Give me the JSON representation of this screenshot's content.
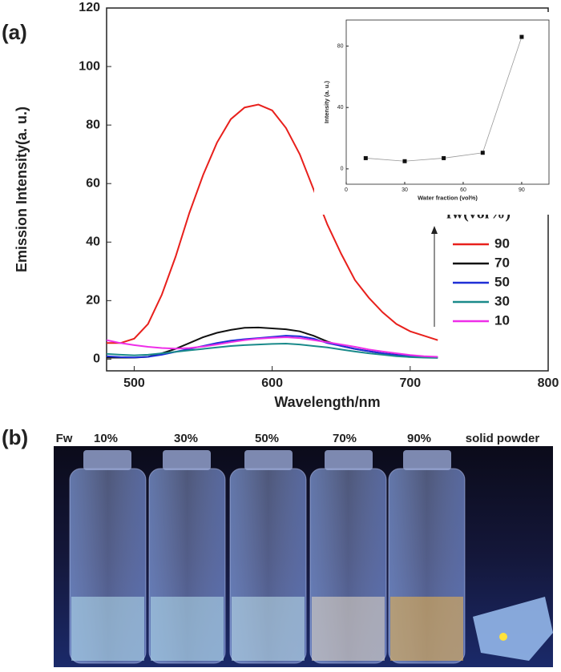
{
  "panels": [
    "(a)",
    "(b)"
  ],
  "chart_data": [
    {
      "type": "line",
      "xlabel": "Wavelength/nm",
      "ylabel": "Emission Intensity(a. u.)",
      "x": [
        480,
        490,
        500,
        510,
        520,
        530,
        540,
        550,
        560,
        570,
        580,
        590,
        600,
        610,
        620,
        630,
        640,
        650,
        660,
        670,
        680,
        690,
        700,
        710,
        720
      ],
      "series": [
        {
          "name": "90",
          "color": "#e8201c",
          "values": [
            5.5,
            5.5,
            7,
            12,
            22,
            35,
            50,
            63,
            74,
            82,
            86,
            87,
            85,
            79,
            70,
            58,
            46,
            36,
            27,
            21,
            16,
            12,
            9.5,
            8,
            6.5
          ]
        },
        {
          "name": "70",
          "color": "#111111",
          "values": [
            0.5,
            0.5,
            0.5,
            0.8,
            2,
            3.5,
            5.5,
            7.5,
            9,
            10,
            10.7,
            10.8,
            10.5,
            10.2,
            9.5,
            8,
            6,
            4.5,
            3.5,
            2.7,
            2,
            1.5,
            1,
            0.7,
            0.5
          ]
        },
        {
          "name": "50",
          "color": "#1f2fd6",
          "values": [
            1,
            0.7,
            0.6,
            0.8,
            1.5,
            2.5,
            3.5,
            4.5,
            5.5,
            6.3,
            6.8,
            7.2,
            7.6,
            8,
            7.8,
            7,
            5.5,
            4.5,
            3.5,
            2.7,
            2,
            1.4,
            1,
            0.8,
            0.6
          ]
        },
        {
          "name": "30",
          "color": "#1a8a8a",
          "values": [
            1.8,
            1.5,
            1.3,
            1.5,
            2,
            2.5,
            3,
            3.5,
            4,
            4.5,
            4.8,
            5,
            5.2,
            5.3,
            5,
            4.5,
            4,
            3.3,
            2.6,
            2,
            1.5,
            1,
            0.7,
            0.5,
            0.4
          ]
        },
        {
          "name": "10",
          "color": "#ee2ee8",
          "values": [
            6.5,
            5.5,
            4.8,
            4.2,
            3.8,
            3.6,
            3.8,
            4.3,
            5,
            5.8,
            6.5,
            7,
            7.3,
            7.5,
            7.2,
            6.5,
            5.8,
            5,
            4.2,
            3.3,
            2.6,
            2,
            1.4,
            1,
            0.8
          ]
        }
      ],
      "legend_title": "fw(vol%)",
      "legend": "right",
      "xlim": [
        480,
        800
      ],
      "xticks": [
        500,
        600,
        700,
        800
      ],
      "ylim": [
        -4,
        120
      ],
      "yticks": [
        0,
        20,
        40,
        60,
        80,
        100,
        120
      ]
    },
    {
      "type": "line",
      "marker": "square",
      "xlabel": "Water fraction (vol%)",
      "ylabel": "Intensity (a. u.)",
      "x": [
        10,
        30,
        50,
        70,
        90
      ],
      "values": [
        7,
        5,
        7,
        10.5,
        86
      ],
      "color": "#111111",
      "xlim": [
        0,
        104
      ],
      "xticks": [
        0,
        30,
        60,
        90
      ],
      "ylim": [
        -10,
        97
      ],
      "yticks": [
        0,
        40,
        80
      ]
    }
  ],
  "photo": {
    "labels": [
      "Fw",
      "10%",
      "30%",
      "50%",
      "70%",
      "90%",
      "solid powder"
    ]
  }
}
